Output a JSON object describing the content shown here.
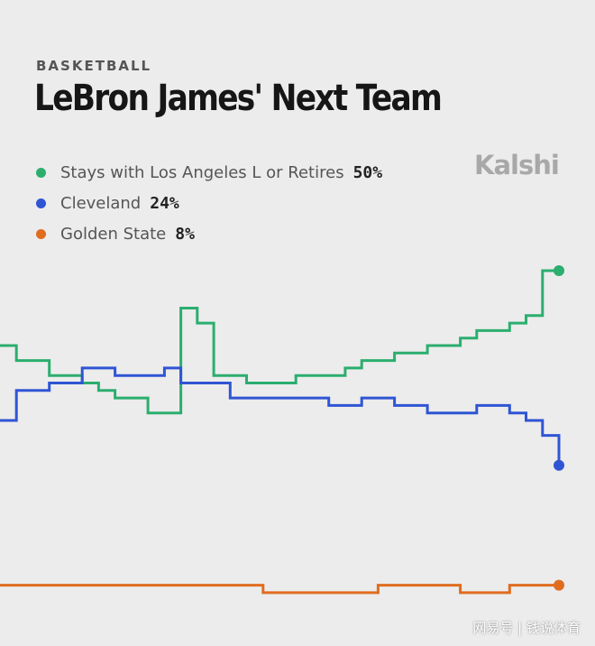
{
  "header": {
    "category": "BASKETBALL",
    "title": "LeBron James' Next Team",
    "brand": "Kalshi"
  },
  "watermark": "网易号 | 钱说体育",
  "chart_data": {
    "type": "line",
    "title": "LeBron James' Next Team",
    "xlabel": "",
    "ylabel": "",
    "ylim": [
      0,
      100
    ],
    "grid": false,
    "legend_position": "top-left",
    "series": [
      {
        "name": "Stays with Los Angeles L or Retires",
        "label": "50%",
        "color": "#2bae6e",
        "values": [
          40,
          38,
          38,
          36,
          36,
          35,
          34,
          33,
          33,
          31,
          31,
          45,
          43,
          36,
          36,
          35,
          35,
          35,
          36,
          36,
          36,
          37,
          38,
          38,
          39,
          39,
          40,
          40,
          41,
          42,
          42,
          43,
          44,
          50,
          50
        ]
      },
      {
        "name": "Cleveland",
        "label": "24%",
        "color": "#2f55d4",
        "values": [
          30,
          34,
          34,
          35,
          35,
          37,
          37,
          36,
          36,
          36,
          37,
          35,
          35,
          35,
          33,
          33,
          33,
          33,
          33,
          33,
          32,
          32,
          33,
          33,
          32,
          32,
          31,
          31,
          31,
          32,
          32,
          31,
          30,
          28,
          24
        ]
      },
      {
        "name": "Golden State",
        "label": "8%",
        "color": "#e06d1f",
        "values": [
          8,
          8,
          8,
          8,
          8,
          8,
          8,
          8,
          8,
          8,
          8,
          8,
          8,
          8,
          8,
          8,
          7,
          7,
          7,
          7,
          7,
          7,
          7,
          8,
          8,
          8,
          8,
          8,
          7,
          7,
          7,
          8,
          8,
          8,
          8
        ]
      }
    ]
  }
}
